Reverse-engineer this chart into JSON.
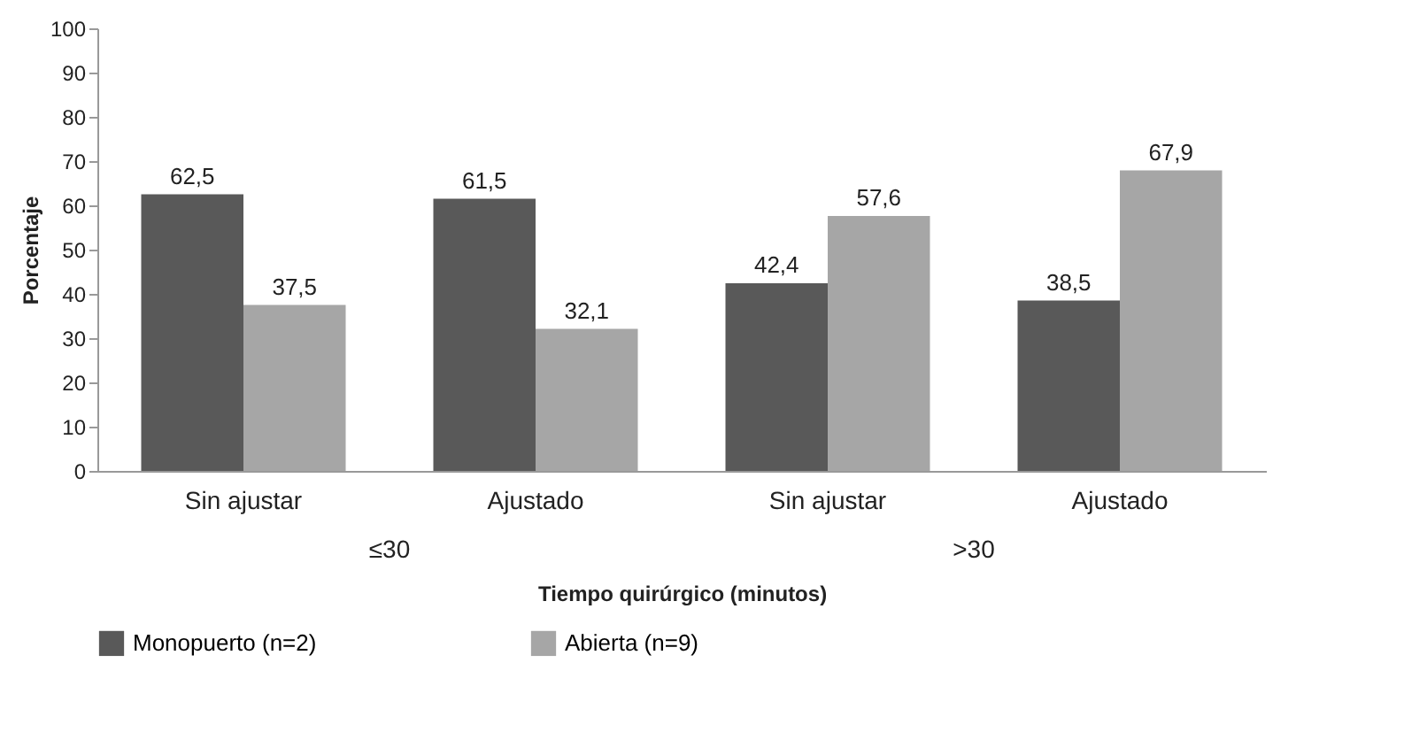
{
  "chart_data": {
    "type": "bar",
    "ylabel": "Porcentaje",
    "xlabel": "Tiempo quirúrgico (minutos)",
    "categories": [
      "Sin ajustar",
      "Ajustado",
      "Sin ajustar",
      "Ajustado"
    ],
    "series": [
      {
        "name": "Monopuerto (n=2)",
        "color": "#595959",
        "values": [
          62.5,
          61.5,
          42.4,
          38.5
        ],
        "value_labels": [
          "62,5",
          "61,5",
          "42,4",
          "38,5"
        ]
      },
      {
        "name": "Abierta (n=9)",
        "color": "#a6a6a6",
        "values": [
          37.5,
          32.1,
          57.6,
          67.9
        ],
        "value_labels": [
          "37,5",
          "32,1",
          "57,6",
          "67,9"
        ]
      }
    ],
    "annotations": [
      "≤30",
      ">30"
    ],
    "ylim": [
      0,
      100
    ],
    "yticks": [
      0,
      10,
      20,
      30,
      40,
      50,
      60,
      70,
      80,
      90,
      100
    ],
    "grid": false,
    "legend": "bottom"
  }
}
